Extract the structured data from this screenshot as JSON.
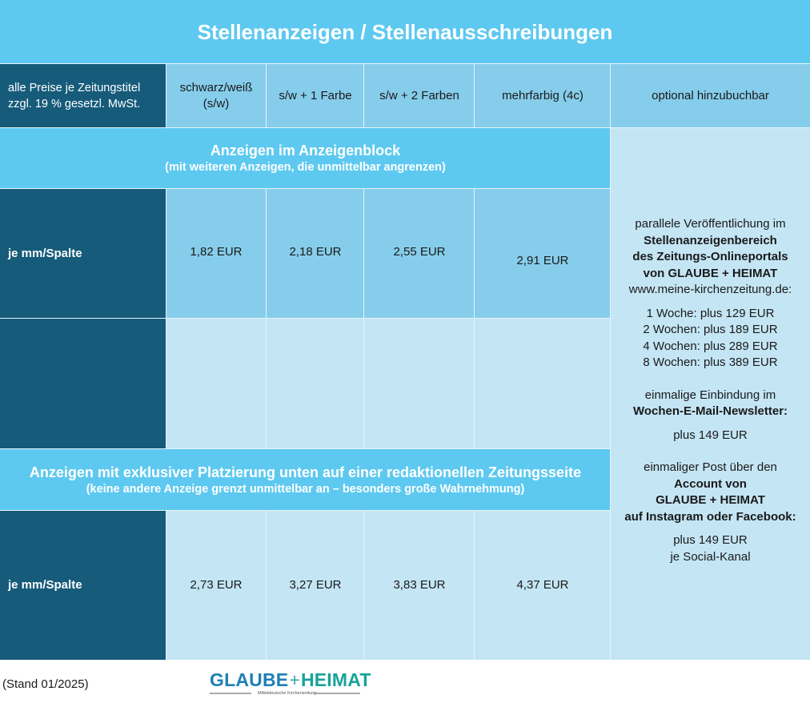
{
  "title": "Stellenanzeigen / Stellenausschreibungen",
  "header": {
    "note_line1": "alle Preise je Zeitungstitel",
    "note_line2": "zzgl. 19 % gesetzl. MwSt.",
    "col1_line1": "schwarz/weiß",
    "col1_line2": "(s/w)",
    "col2": "s/w + 1 Farbe",
    "col3": "s/w + 2 Farben",
    "col4": "mehrfarbig (4c)",
    "col5": "optional hinzubuchbar"
  },
  "section1": {
    "title": "Anzeigen im Anzeigenblock",
    "subtitle": "(mit weiteren Anzeigen, die unmittelbar angrenzen)",
    "row_label": "je mm/Spalte",
    "prices": [
      "1,82 EUR",
      "2,18 EUR",
      "2,55 EUR",
      "2,91 EUR"
    ]
  },
  "section2": {
    "title": "Anzeigen mit exklusiver Platzierung unten auf einer redaktionellen Zeitungsseite",
    "subtitle": "(keine andere Anzeige grenzt unmittelbar an – besonders große Wahrnehmung)",
    "row_label": "je mm/Spalte",
    "prices": [
      "2,73 EUR",
      "3,27 EUR",
      "3,83 EUR",
      "4,37 EUR"
    ]
  },
  "sidebar": {
    "online_intro": "parallele Veröffentlichung im",
    "online_b1": "Stellenanzeigenbereich",
    "online_b2": "des Zeitungs-Onlineportals",
    "online_b3": "von GLAUBE + HEIMAT",
    "online_url": "www.meine-kirchenzeitung.de:",
    "weeks": [
      "1 Woche: plus 129 EUR",
      "2 Wochen: plus 189 EUR",
      "4 Wochen: plus 289 EUR",
      "8 Wochen: plus 389 EUR"
    ],
    "newsletter_intro": "einmalige Einbindung im",
    "newsletter_b": "Wochen-E-Mail-Newsletter:",
    "newsletter_price": "plus 149 EUR",
    "social_intro": "einmaliger Post über den",
    "social_b1": "Account von",
    "social_b2": "GLAUBE + HEIMAT",
    "social_b3": "auf Instagram oder Facebook:",
    "social_price": "plus 149 EUR",
    "social_per": "je Social-Kanal"
  },
  "footer": {
    "stand": "(Stand 01/2025)",
    "logo_left": "GLAUBE",
    "logo_plus": "+",
    "logo_right": "HEIMAT",
    "logo_tagline": "Mitteldeutsche Kirchenzeitung"
  },
  "colors": {
    "title_bg": "#5ec9f0",
    "dark": "#165b7a",
    "mid": "#86cdeb",
    "light": "#c4e5f4"
  }
}
